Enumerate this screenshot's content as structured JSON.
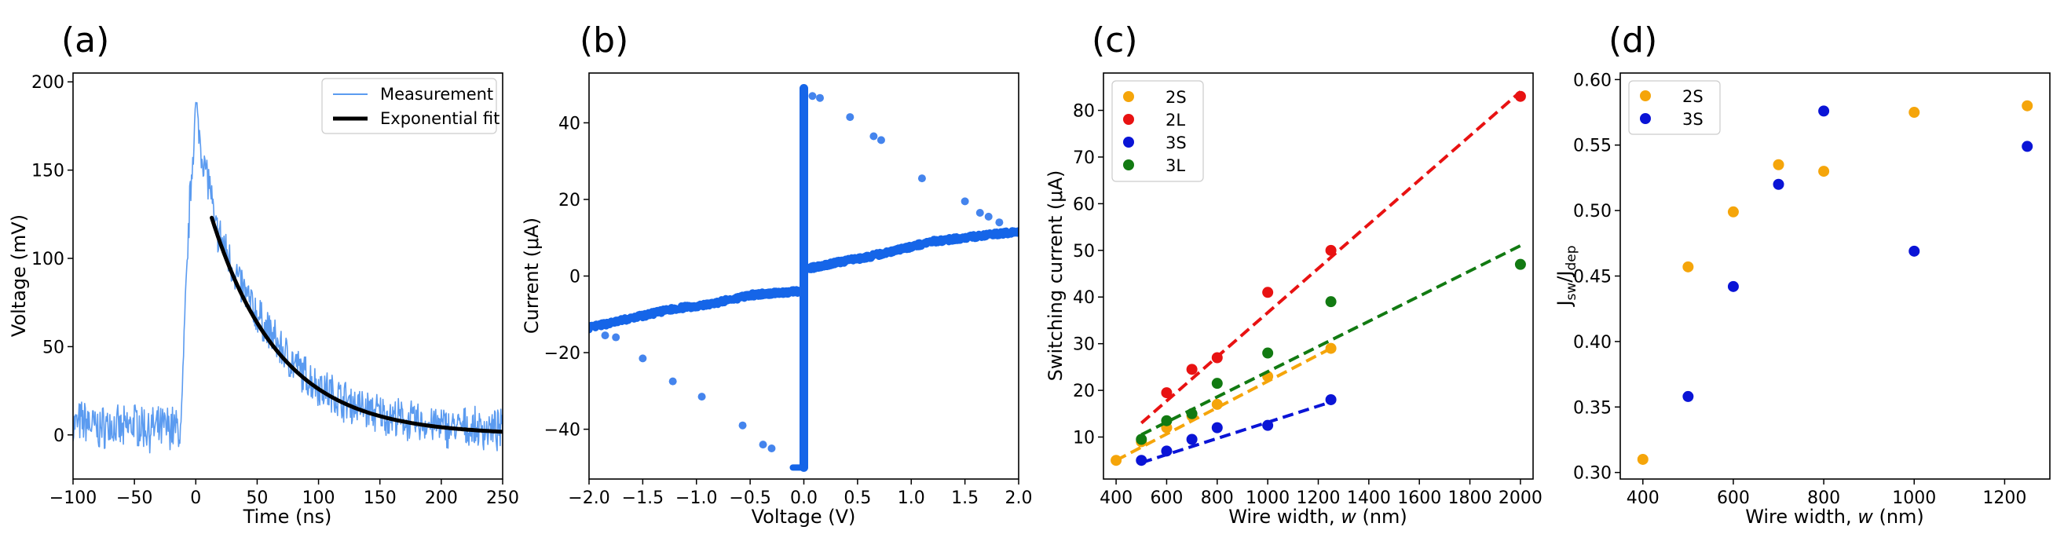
{
  "colors": {
    "measurement": "#5b9bf0",
    "fit": "#000000",
    "iv": "#1565e8",
    "orange": "#f5a50a",
    "red": "#e81212",
    "blue": "#0a14d6",
    "green": "#127a12"
  },
  "chart_data": [
    {
      "panel": "(a)",
      "type": "line",
      "xlabel": "Time (ns)",
      "ylabel": "Voltage (mV)",
      "xlim": [
        -100,
        250
      ],
      "ylim": [
        -25,
        205
      ],
      "xticks": [
        -100,
        -50,
        0,
        50,
        100,
        150,
        200,
        250
      ],
      "xtick_labels": [
        "−100",
        "−50",
        "0",
        "50",
        "100",
        "150",
        "200",
        "250"
      ],
      "yticks": [
        0,
        50,
        100,
        150,
        200
      ],
      "ytick_labels": [
        "0",
        "50",
        "100",
        "150",
        "200"
      ],
      "legend": [
        "Measurement",
        "Exponential fit"
      ],
      "legend_loc": "upper right",
      "series": [
        {
          "name": "Measurement",
          "x": [
            -100,
            -90,
            -80,
            -70,
            -60,
            -50,
            -40,
            -30,
            -20,
            -12,
            -8,
            -5,
            -2,
            0,
            2,
            5,
            8,
            12,
            15,
            20,
            30,
            40,
            50,
            60,
            70,
            80,
            90,
            100,
            110,
            120,
            130,
            140,
            150,
            160,
            170,
            180,
            190,
            200,
            210,
            220,
            230,
            240,
            250
          ],
          "y": [
            5,
            8,
            3,
            6,
            2,
            7,
            4,
            3,
            5,
            2,
            80,
            130,
            165,
            185,
            175,
            160,
            150,
            140,
            118,
            112,
            95,
            80,
            68,
            58,
            48,
            40,
            33,
            28,
            24,
            20,
            17,
            14,
            12,
            10,
            8,
            7,
            6,
            5,
            4,
            4,
            3,
            3,
            2
          ]
        },
        {
          "name": "Exponential fit",
          "x0": 13,
          "x1": 250,
          "amplitude": 123,
          "tau": 56
        }
      ]
    },
    {
      "panel": "(b)",
      "type": "scatter",
      "xlabel": "Voltage (V)",
      "ylabel": "Current (μA)",
      "xlim": [
        -2.0,
        2.0
      ],
      "ylim": [
        -53,
        53
      ],
      "xticks": [
        -2.0,
        -1.5,
        -1.0,
        -0.5,
        0.0,
        0.5,
        1.0,
        1.5,
        2.0
      ],
      "xtick_labels": [
        "−2.0",
        "−1.5",
        "−1.0",
        "−0.5",
        "0.0",
        "0.5",
        "1.0",
        "1.5",
        "2.0"
      ],
      "yticks": [
        -40,
        -20,
        0,
        20,
        40
      ],
      "ytick_labels": [
        "−40",
        "−20",
        "0",
        "20",
        "40"
      ],
      "branch_negative": {
        "x": [
          -2.0,
          -1.6,
          -1.2,
          -0.9,
          -0.5,
          -0.3,
          -0.05
        ],
        "y": [
          -13.5,
          -11,
          -8.5,
          -7.5,
          -5,
          -4.5,
          -4
        ]
      },
      "branch_positive": {
        "x": [
          0.05,
          0.3,
          0.6,
          0.9,
          1.2,
          1.5,
          1.8,
          2.0
        ],
        "y": [
          2,
          3.5,
          5,
          7,
          9,
          10,
          11,
          11.5
        ]
      },
      "vertical_jump": {
        "x": 0.0,
        "y_from": -50,
        "y_to": 49
      },
      "sparse_points": {
        "x": [
          -1.85,
          -1.75,
          -1.5,
          -1.22,
          -0.95,
          -0.57,
          -0.38,
          -0.3,
          0.08,
          0.15,
          0.43,
          0.65,
          0.72,
          1.1,
          1.5,
          1.64,
          1.72,
          1.82
        ],
        "y": [
          -15.5,
          -16,
          -21.5,
          -27.5,
          -31.5,
          -39,
          -44,
          -45,
          47,
          46.5,
          41.5,
          36.5,
          35.5,
          25.5,
          19.5,
          16.5,
          15.5,
          14
        ]
      }
    },
    {
      "panel": "(c)",
      "type": "scatter",
      "xlabel": "Wire width, w (nm)",
      "ylabel": "Switching current (μA)",
      "xlim": [
        350,
        2050
      ],
      "ylim": [
        1,
        88
      ],
      "xticks": [
        400,
        600,
        800,
        1000,
        1200,
        1400,
        1600,
        1800,
        2000
      ],
      "xtick_labels": [
        "400",
        "600",
        "800",
        "1000",
        "1200",
        "1400",
        "1600",
        "1800",
        "2000"
      ],
      "yticks": [
        10,
        20,
        30,
        40,
        50,
        60,
        70,
        80
      ],
      "ytick_labels": [
        "10",
        "20",
        "30",
        "40",
        "50",
        "60",
        "70",
        "80"
      ],
      "legend_loc": "upper left",
      "series": [
        {
          "name": "2S",
          "color_key": "orange",
          "x": [
            400,
            500,
            600,
            700,
            800,
            1000,
            1250
          ],
          "y": [
            5,
            9,
            12,
            14.5,
            17,
            23,
            29
          ],
          "fit": [
            [
              400,
              5
            ],
            [
              1250,
              29
            ]
          ]
        },
        {
          "name": "2L",
          "color_key": "red",
          "x": [
            600,
            700,
            800,
            1000,
            1250,
            2000
          ],
          "y": [
            19.5,
            24.5,
            27,
            41,
            50,
            83
          ],
          "fit": [
            [
              500,
              13
            ],
            [
              2000,
              84
            ]
          ]
        },
        {
          "name": "3S",
          "color_key": "blue",
          "x": [
            500,
            600,
            700,
            800,
            1000,
            1250
          ],
          "y": [
            5,
            7,
            9.5,
            12,
            12.5,
            18
          ],
          "fit": [
            [
              500,
              4.5
            ],
            [
              1250,
              17.5
            ]
          ]
        },
        {
          "name": "3L",
          "color_key": "green",
          "x": [
            500,
            600,
            700,
            800,
            1000,
            1250,
            2000
          ],
          "y": [
            9.5,
            13.5,
            15,
            21.5,
            28,
            39,
            47
          ],
          "fit": [
            [
              500,
              10.5
            ],
            [
              2000,
              51
            ]
          ]
        }
      ]
    },
    {
      "panel": "(d)",
      "type": "scatter",
      "xlabel": "Wire width, w (nm)",
      "ylabel": "J_sw/J_dep",
      "xlim": [
        350,
        1300
      ],
      "ylim": [
        0.295,
        0.605
      ],
      "xticks": [
        400,
        600,
        800,
        1000,
        1200
      ],
      "xtick_labels": [
        "400",
        "600",
        "800",
        "1000",
        "1200"
      ],
      "yticks": [
        0.3,
        0.35,
        0.4,
        0.45,
        0.5,
        0.55,
        0.6
      ],
      "ytick_labels": [
        "0.30",
        "0.35",
        "0.40",
        "0.45",
        "0.50",
        "0.55",
        "0.60"
      ],
      "legend_loc": "upper left",
      "series": [
        {
          "name": "2S",
          "color_key": "orange",
          "x": [
            400,
            500,
            600,
            700,
            800,
            1000,
            1250
          ],
          "y": [
            0.31,
            0.457,
            0.499,
            0.535,
            0.53,
            0.575,
            0.58
          ]
        },
        {
          "name": "3S",
          "color_key": "blue",
          "x": [
            500,
            600,
            700,
            800,
            1000,
            1250
          ],
          "y": [
            0.358,
            0.442,
            0.52,
            0.576,
            0.469,
            0.549
          ]
        }
      ]
    }
  ]
}
